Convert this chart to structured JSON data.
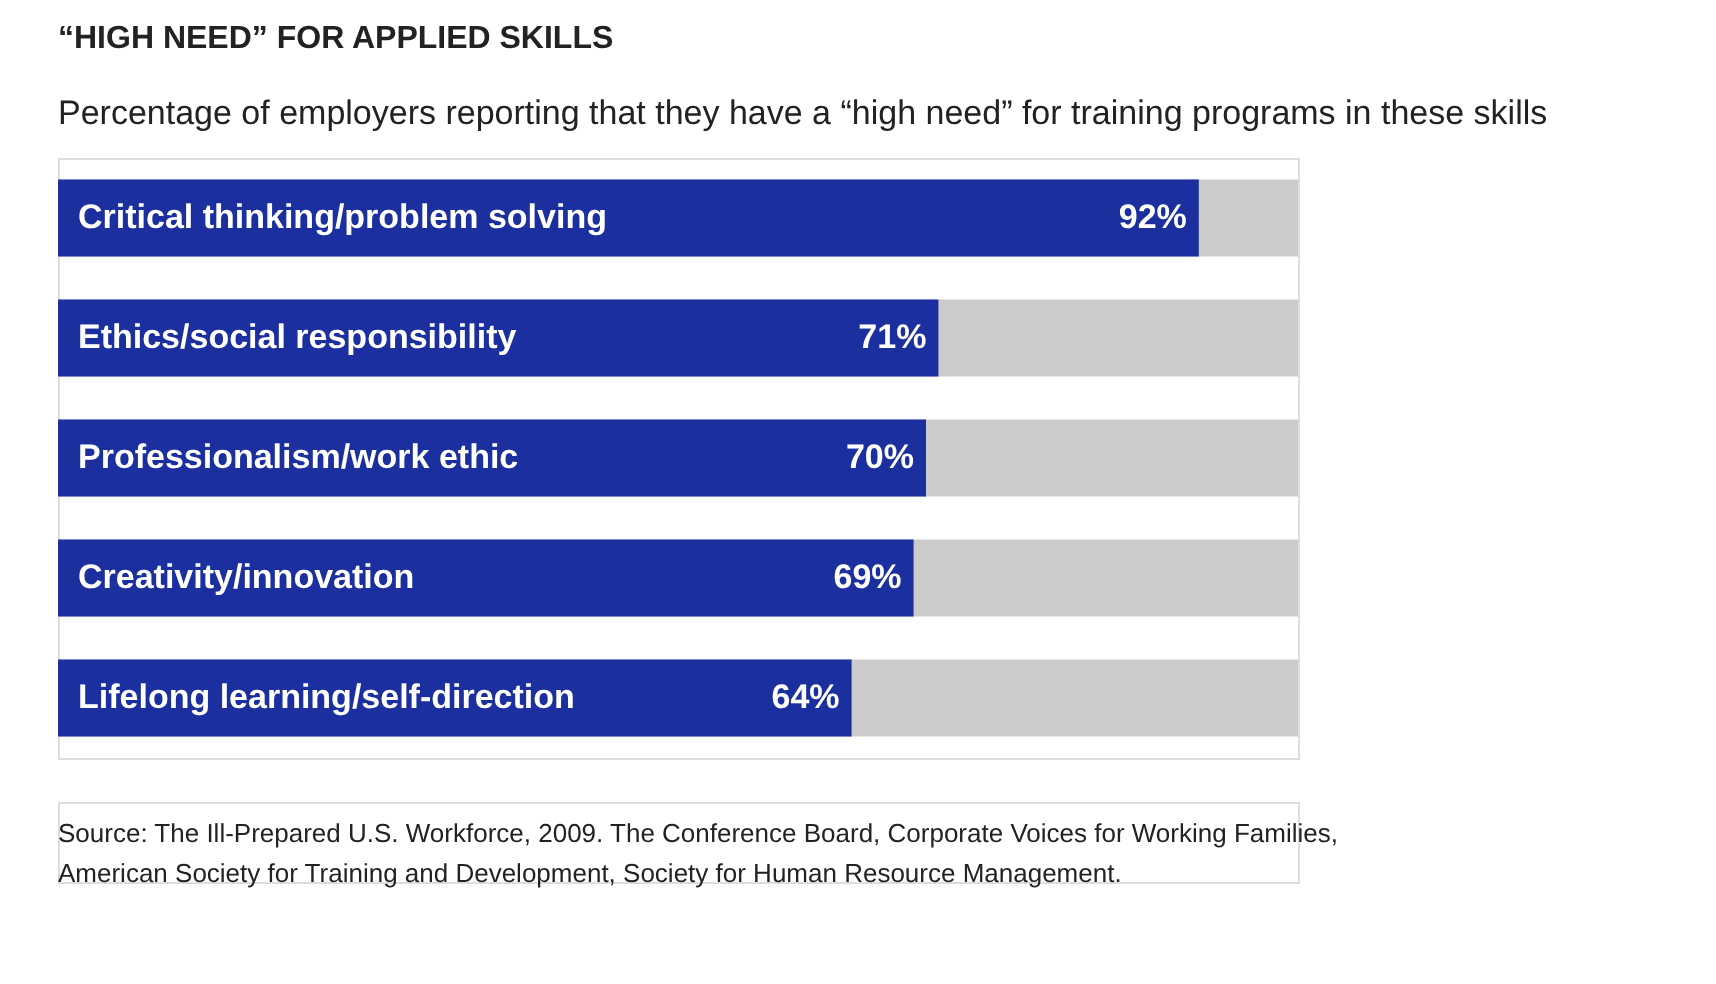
{
  "chart_data": {
    "type": "bar",
    "orientation": "horizontal",
    "title": "“HIGH NEED” FOR APPLIED SKILLS",
    "subtitle": "Percentage of employers reporting that they have a “high need” for training programs in these skills",
    "categories": [
      "Critical thinking/problem solving",
      "Ethics/social responsibility",
      "Professionalism/work ethic",
      "Creativity/innovation",
      "Lifelong learning/self-direction"
    ],
    "values": [
      92,
      71,
      70,
      69,
      64
    ],
    "value_labels": [
      "92%",
      "71%",
      "70%",
      "69%",
      "64%"
    ],
    "color": "#1b2f9e",
    "xlim": [
      0,
      100
    ],
    "annotations": [
      "Source: The Ill-Prepared U.S. Workforce, 2009. The Conference Board, Corporate Voices for Working Families,",
      "American Society for Training and Development, Society for Human Resource Management."
    ]
  }
}
